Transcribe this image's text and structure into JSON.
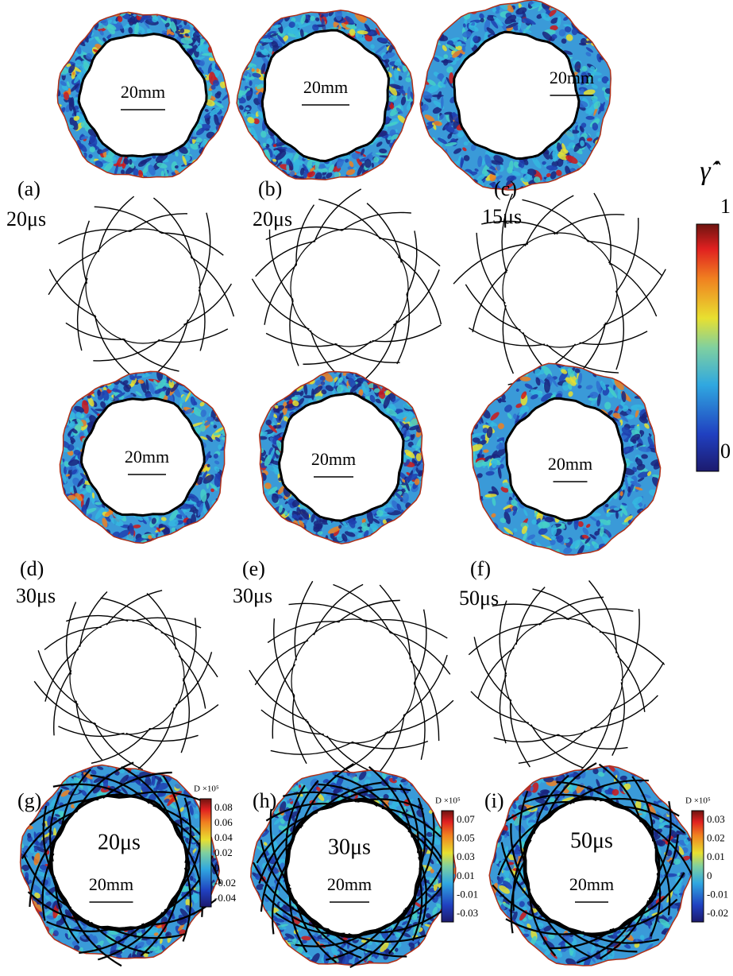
{
  "main_colorbar": {
    "symbol": "γ̂̇",
    "ticks": [
      1,
      0
    ]
  },
  "panels": [
    {
      "label": "(a)",
      "time": "20μs",
      "scale": "20mm"
    },
    {
      "label": "(b)",
      "time": "20μs",
      "scale": "20mm"
    },
    {
      "label": "(c)",
      "time": "15μs",
      "scale": "20mm"
    },
    {
      "label": "(d)",
      "time": "30μs",
      "scale": "20mm"
    },
    {
      "label": "(e)",
      "time": "30μs",
      "scale": "20mm"
    },
    {
      "label": "(f)",
      "time": "50μs",
      "scale": "20mm"
    },
    {
      "label": "(g)",
      "time": "20μs",
      "scale": "20mm",
      "colorbar": {
        "title": "D ×10⁵",
        "ticks": [
          0.08,
          0.06,
          0.04,
          0.02,
          0,
          -0.02,
          -0.04
        ]
      }
    },
    {
      "label": "(h)",
      "time": "30μs",
      "scale": "20mm",
      "colorbar": {
        "title": "D ×10⁵",
        "ticks": [
          0.07,
          0.05,
          0.03,
          0.01,
          -0.01,
          -0.03
        ]
      }
    },
    {
      "label": "(i)",
      "time": "50μs",
      "scale": "20mm",
      "colorbar": {
        "title": "D ×10⁵",
        "ticks": [
          0.03,
          0.02,
          0.01,
          0,
          -0.01,
          -0.02
        ]
      }
    }
  ]
}
